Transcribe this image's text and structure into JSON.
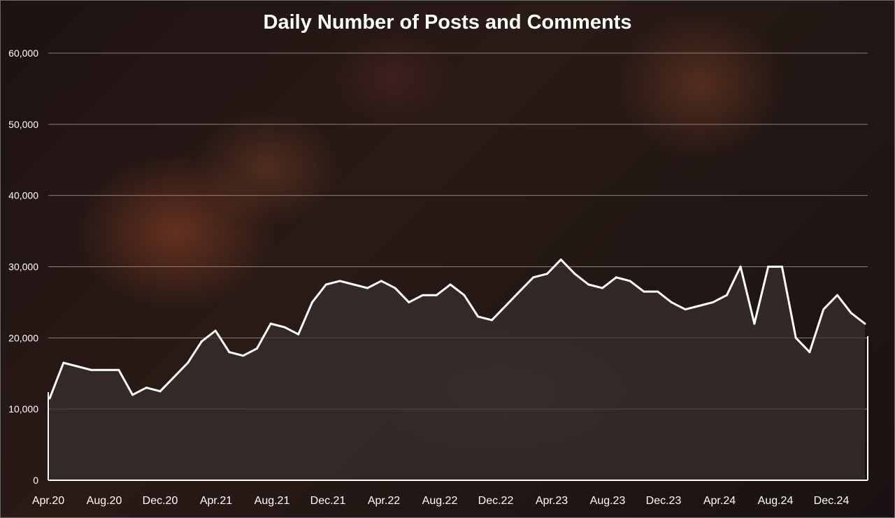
{
  "chart_data": {
    "type": "area",
    "title": "Daily Number of Posts and Comments",
    "ylim": [
      0,
      60000
    ],
    "y_ticks": [
      "0",
      "10,000",
      "20,000",
      "30,000",
      "40,000",
      "50,000",
      "60,000"
    ],
    "x_ticks": [
      "Apr.20",
      "Aug.20",
      "Dec.20",
      "Apr.21",
      "Aug.21",
      "Dec.21",
      "Apr.22",
      "Aug.22",
      "Dec.22",
      "Apr.23",
      "Aug.23",
      "Dec.23",
      "Apr.24",
      "Aug.24",
      "Dec.24"
    ],
    "grid": true,
    "series_color": "#ffffff",
    "fill_color": "#3a3030",
    "series": [
      {
        "x": [
          "2020-04",
          "2020-05",
          "2020-06",
          "2020-07",
          "2020-08",
          "2020-09",
          "2020-10",
          "2020-11",
          "2020-12",
          "2021-01",
          "2021-02",
          "2021-03",
          "2021-04",
          "2021-05",
          "2021-06",
          "2021-07",
          "2021-08",
          "2021-09",
          "2021-10",
          "2021-11",
          "2021-12",
          "2022-01",
          "2022-02",
          "2022-03",
          "2022-04",
          "2022-05",
          "2022-06",
          "2022-07",
          "2022-08",
          "2022-09",
          "2022-10",
          "2022-11",
          "2022-12",
          "2023-01",
          "2023-02",
          "2023-03",
          "2023-04",
          "2023-05",
          "2023-06",
          "2023-07",
          "2023-08",
          "2023-09",
          "2023-10",
          "2023-11",
          "2023-12",
          "2024-01",
          "2024-02",
          "2024-03",
          "2024-04",
          "2024-05",
          "2024-06",
          "2024-07",
          "2024-08",
          "2024-09",
          "2024-10",
          "2024-11",
          "2024-12",
          "2025-01",
          "2025-02",
          "2025-03"
        ],
        "values": [
          11500,
          16500,
          16000,
          15500,
          15500,
          15500,
          12000,
          13000,
          12500,
          14500,
          16500,
          19500,
          21000,
          18000,
          17500,
          18500,
          22000,
          21500,
          20500,
          25000,
          27500,
          28000,
          27500,
          27000,
          28000,
          27000,
          25000,
          26000,
          26000,
          27500,
          26000,
          23000,
          22500,
          24500,
          26500,
          28500,
          29000,
          31000,
          29000,
          27500,
          27000,
          28500,
          28000,
          26500,
          26500,
          25000,
          24000,
          24500,
          25000,
          26000,
          30000,
          22000,
          30000,
          30000,
          20000,
          18000,
          24000,
          26000,
          23500,
          22000
        ]
      }
    ]
  }
}
